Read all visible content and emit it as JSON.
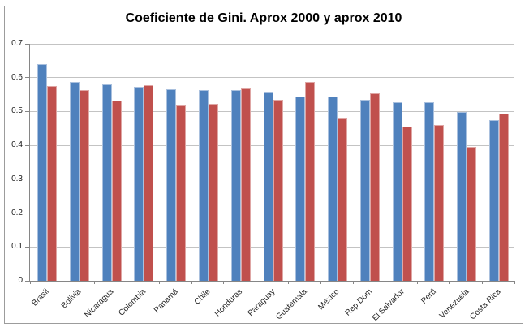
{
  "chart_data": {
    "type": "bar",
    "title": "Coeficiente de Gini. Aprox 2000 y aprox 2010",
    "xlabel": "",
    "ylabel": "",
    "ylim": [
      0,
      0.7
    ],
    "y_ticks": [
      "0.7",
      "0.6",
      "0.5",
      "0.4",
      "0.3",
      "0.2",
      "0.1",
      "0"
    ],
    "grid": true,
    "legend_position": "none",
    "categories": [
      "Brasil",
      "Bolivia",
      "Nicaragua",
      "Colombia",
      "Panamá",
      "Chile",
      "Honduras",
      "Paraguay",
      "Guatemala",
      "México",
      "Rep Dom",
      "El Salvador",
      "Perú",
      "Venezuela",
      "Costa Rica"
    ],
    "series": [
      {
        "name": "aprox 2000",
        "color": "#4f81bd",
        "edge_color": "#a9c0de",
        "values": [
          0.64,
          0.587,
          0.58,
          0.573,
          0.566,
          0.563,
          0.564,
          0.558,
          0.544,
          0.543,
          0.535,
          0.527,
          0.527,
          0.498,
          0.475
        ]
      },
      {
        "name": "aprox 2010",
        "color": "#c0504d",
        "edge_color": "#dfa6a4",
        "values": [
          0.576,
          0.564,
          0.533,
          0.578,
          0.521,
          0.523,
          0.567,
          0.534,
          0.587,
          0.479,
          0.554,
          0.455,
          0.46,
          0.395,
          0.494
        ]
      }
    ]
  }
}
